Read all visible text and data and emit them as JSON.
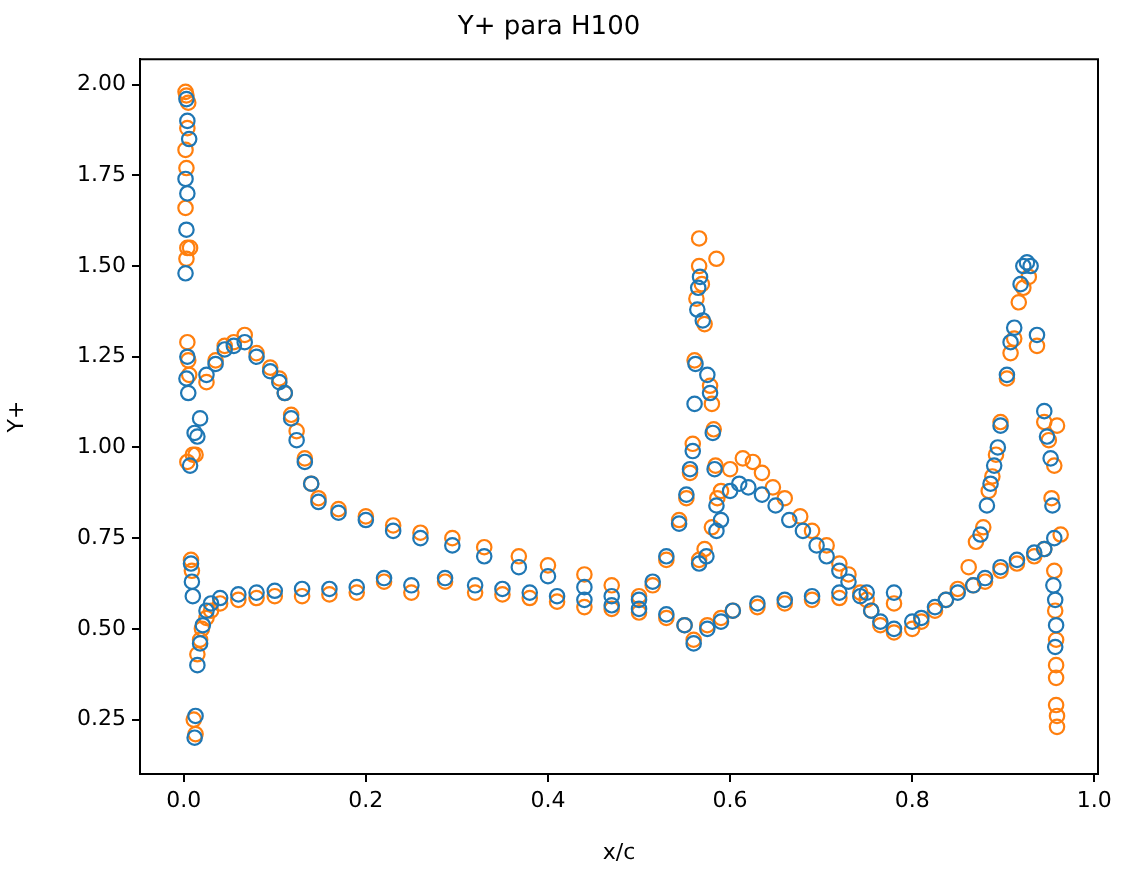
{
  "chart_data": {
    "type": "scatter",
    "title": "Y+ para H100",
    "xlabel": "x/c",
    "ylabel": "Y+",
    "marker": "circle",
    "grid": false,
    "legend": false,
    "xlim": [
      -0.048,
      1.004
    ],
    "ylim": [
      0.1,
      2.07
    ],
    "xticks": [
      {
        "value": 0,
        "label": "0.0"
      },
      0.2,
      0.4,
      0.6,
      0.8,
      {
        "value": 1,
        "label": "1.0"
      }
    ],
    "yticks": [
      {
        "value": 0.25,
        "label": "0.25"
      },
      {
        "value": 0.5,
        "label": "0.50"
      },
      {
        "value": 0.75,
        "label": "0.75"
      },
      {
        "value": 1,
        "label": "1.00"
      },
      {
        "value": 1.25,
        "label": "1.25"
      },
      {
        "value": 1.5,
        "label": "1.50"
      },
      {
        "value": 1.75,
        "label": "1.75"
      },
      {
        "value": 2,
        "label": "2.00"
      }
    ],
    "series": [
      {
        "color": "#1f77b4",
        "x": [
          0.003,
          0.004,
          0.006,
          0.002,
          0.004,
          0.003,
          0.002,
          0.004,
          0.003,
          0.005,
          0.007,
          0.012,
          0.015,
          0.018,
          0.008,
          0.009,
          0.01,
          0.012,
          0.013,
          0.015,
          0.018,
          0.021,
          0.025,
          0.03,
          0.04,
          0.06,
          0.08,
          0.1,
          0.13,
          0.16,
          0.19,
          0.22,
          0.25,
          0.287,
          0.32,
          0.35,
          0.38,
          0.41,
          0.44,
          0.47,
          0.5,
          0.53,
          0.55,
          0.56,
          0.025,
          0.035,
          0.045,
          0.055,
          0.067,
          0.08,
          0.095,
          0.105,
          0.111,
          0.118,
          0.124,
          0.133,
          0.14,
          0.148,
          0.17,
          0.2,
          0.23,
          0.26,
          0.295,
          0.33,
          0.368,
          0.4,
          0.44,
          0.47,
          0.5,
          0.515,
          0.53,
          0.544,
          0.552,
          0.556,
          0.559,
          0.561,
          0.562,
          0.564,
          0.565,
          0.567,
          0.57,
          0.575,
          0.578,
          0.581,
          0.583,
          0.585,
          0.585,
          0.574,
          0.566,
          0.59,
          0.6,
          0.61,
          0.62,
          0.635,
          0.65,
          0.665,
          0.68,
          0.695,
          0.706,
          0.72,
          0.73,
          0.743,
          0.755,
          0.765,
          0.78,
          0.575,
          0.59,
          0.603,
          0.63,
          0.66,
          0.69,
          0.72,
          0.75,
          0.78,
          0.8,
          0.81,
          0.825,
          0.837,
          0.85,
          0.867,
          0.88,
          0.897,
          0.915,
          0.934,
          0.945,
          0.875,
          0.882,
          0.886,
          0.89,
          0.894,
          0.897,
          0.904,
          0.908,
          0.912,
          0.919,
          0.922,
          0.926,
          0.93,
          0.937,
          0.945,
          0.948,
          0.952,
          0.954,
          0.956,
          0.955,
          0.957,
          0.958,
          0.957
        ],
        "values": [
          1.96,
          1.9,
          1.85,
          1.74,
          1.7,
          1.6,
          1.48,
          1.25,
          1.19,
          1.15,
          0.95,
          1.04,
          1.03,
          1.08,
          0.68,
          0.63,
          0.59,
          0.2,
          0.26,
          0.4,
          0.46,
          0.51,
          0.55,
          0.57,
          0.585,
          0.595,
          0.6,
          0.605,
          0.61,
          0.61,
          0.615,
          0.64,
          0.62,
          0.64,
          0.62,
          0.61,
          0.6,
          0.59,
          0.58,
          0.565,
          0.555,
          0.54,
          0.51,
          0.46,
          1.2,
          1.23,
          1.27,
          1.28,
          1.29,
          1.25,
          1.21,
          1.18,
          1.15,
          1.08,
          1.02,
          0.96,
          0.9,
          0.85,
          0.82,
          0.8,
          0.77,
          0.75,
          0.73,
          0.7,
          0.67,
          0.645,
          0.615,
          0.59,
          0.58,
          0.63,
          0.7,
          0.79,
          0.87,
          0.94,
          0.99,
          1.12,
          1.23,
          1.38,
          1.44,
          1.47,
          1.35,
          1.2,
          1.15,
          1.04,
          0.94,
          0.84,
          0.77,
          0.7,
          0.68,
          0.8,
          0.88,
          0.9,
          0.89,
          0.87,
          0.84,
          0.8,
          0.77,
          0.73,
          0.7,
          0.66,
          0.63,
          0.59,
          0.55,
          0.52,
          0.5,
          0.5,
          0.52,
          0.55,
          0.57,
          0.58,
          0.59,
          0.6,
          0.6,
          0.6,
          0.52,
          0.53,
          0.56,
          0.58,
          0.6,
          0.62,
          0.64,
          0.67,
          0.69,
          0.71,
          0.72,
          0.76,
          0.84,
          0.9,
          0.95,
          1.0,
          1.06,
          1.2,
          1.29,
          1.33,
          1.45,
          1.5,
          1.51,
          1.5,
          1.31,
          1.1,
          1.03,
          0.97,
          0.84,
          0.75,
          0.62,
          0.58,
          0.51,
          0.45
        ]
      },
      {
        "color": "#ff7f0e",
        "x": [
          0.002,
          0.003,
          0.005,
          0.004,
          0.002,
          0.003,
          0.002,
          0.004,
          0.007,
          0.003,
          0.004,
          0.005,
          0.006,
          0.004,
          0.01,
          0.013,
          0.008,
          0.009,
          0.011,
          0.013,
          0.015,
          0.018,
          0.02,
          0.025,
          0.03,
          0.04,
          0.06,
          0.08,
          0.1,
          0.13,
          0.16,
          0.19,
          0.22,
          0.25,
          0.287,
          0.32,
          0.35,
          0.38,
          0.41,
          0.44,
          0.47,
          0.5,
          0.53,
          0.55,
          0.56,
          0.025,
          0.035,
          0.045,
          0.055,
          0.067,
          0.08,
          0.095,
          0.105,
          0.111,
          0.118,
          0.124,
          0.133,
          0.14,
          0.148,
          0.17,
          0.2,
          0.23,
          0.26,
          0.295,
          0.33,
          0.368,
          0.4,
          0.44,
          0.47,
          0.5,
          0.515,
          0.53,
          0.544,
          0.552,
          0.556,
          0.559,
          0.561,
          0.563,
          0.566,
          0.566,
          0.585,
          0.569,
          0.572,
          0.578,
          0.58,
          0.582,
          0.584,
          0.586,
          0.58,
          0.572,
          0.566,
          0.59,
          0.6,
          0.614,
          0.625,
          0.635,
          0.647,
          0.66,
          0.677,
          0.69,
          0.706,
          0.72,
          0.73,
          0.743,
          0.755,
          0.765,
          0.78,
          0.575,
          0.59,
          0.603,
          0.63,
          0.66,
          0.69,
          0.72,
          0.75,
          0.78,
          0.8,
          0.81,
          0.825,
          0.837,
          0.85,
          0.862,
          0.87,
          0.867,
          0.88,
          0.897,
          0.915,
          0.934,
          0.945,
          0.878,
          0.884,
          0.888,
          0.892,
          0.897,
          0.904,
          0.908,
          0.912,
          0.917,
          0.922,
          0.928,
          0.937,
          0.945,
          0.95,
          0.959,
          0.956,
          0.953,
          0.963,
          0.956,
          0.957,
          0.958,
          0.958,
          0.958,
          0.958,
          0.959,
          0.959
        ],
        "values": [
          1.98,
          1.97,
          1.95,
          1.88,
          1.82,
          1.77,
          1.66,
          1.55,
          1.55,
          1.52,
          1.29,
          1.24,
          1.2,
          0.96,
          0.98,
          0.98,
          0.69,
          0.66,
          0.25,
          0.21,
          0.43,
          0.47,
          0.5,
          0.53,
          0.55,
          0.57,
          0.58,
          0.585,
          0.59,
          0.59,
          0.595,
          0.6,
          0.63,
          0.6,
          0.63,
          0.6,
          0.595,
          0.585,
          0.575,
          0.56,
          0.555,
          0.545,
          0.53,
          0.51,
          0.47,
          1.18,
          1.24,
          1.28,
          1.29,
          1.31,
          1.26,
          1.22,
          1.19,
          1.15,
          1.09,
          1.045,
          0.97,
          0.9,
          0.86,
          0.83,
          0.81,
          0.785,
          0.765,
          0.75,
          0.725,
          0.7,
          0.675,
          0.65,
          0.62,
          0.59,
          0.62,
          0.69,
          0.8,
          0.86,
          0.93,
          1.01,
          1.24,
          1.41,
          1.5,
          1.576,
          1.52,
          1.45,
          1.34,
          1.17,
          1.12,
          1.05,
          0.95,
          0.86,
          0.78,
          0.72,
          0.69,
          0.88,
          0.94,
          0.97,
          0.96,
          0.93,
          0.89,
          0.86,
          0.81,
          0.77,
          0.73,
          0.68,
          0.65,
          0.6,
          0.55,
          0.51,
          0.49,
          0.51,
          0.53,
          0.55,
          0.56,
          0.57,
          0.58,
          0.585,
          0.58,
          0.57,
          0.5,
          0.52,
          0.55,
          0.58,
          0.61,
          0.67,
          0.74,
          0.62,
          0.63,
          0.66,
          0.68,
          0.7,
          0.72,
          0.78,
          0.88,
          0.92,
          0.98,
          1.07,
          1.19,
          1.26,
          1.3,
          1.4,
          1.44,
          1.47,
          1.28,
          1.07,
          1.02,
          1.06,
          0.95,
          0.86,
          0.76,
          0.66,
          0.55,
          0.47,
          0.4,
          0.365,
          0.29,
          0.26,
          0.23
        ]
      }
    ]
  }
}
